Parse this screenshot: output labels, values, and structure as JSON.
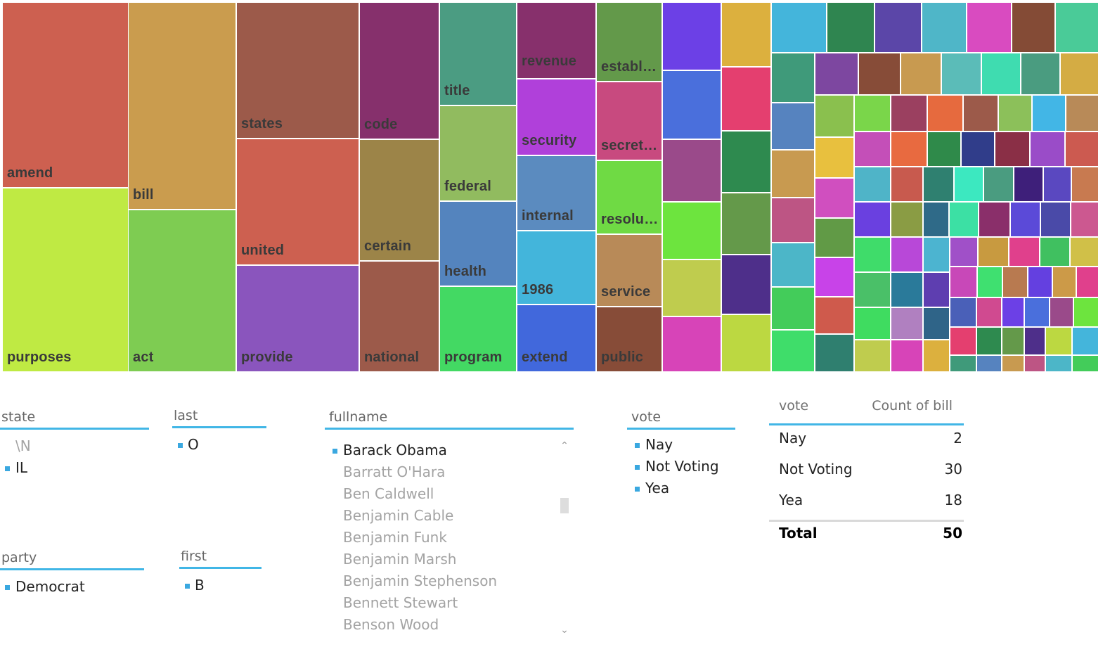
{
  "treemap": {
    "labeled_tiles": [
      {
        "label": "amend",
        "color": "#cd6050"
      },
      {
        "label": "purposes",
        "color": "#bfea43"
      },
      {
        "label": "bill",
        "color": "#ca9c4e"
      },
      {
        "label": "act",
        "color": "#7ecc52"
      },
      {
        "label": "states",
        "color": "#9c5a4a"
      },
      {
        "label": "united",
        "color": "#cd6050"
      },
      {
        "label": "provide",
        "color": "#8a55bd"
      },
      {
        "label": "code",
        "color": "#86306c"
      },
      {
        "label": "certain",
        "color": "#9c8448"
      },
      {
        "label": "national",
        "color": "#9c5a4a"
      },
      {
        "label": "title",
        "color": "#4b9c82"
      },
      {
        "label": "federal",
        "color": "#91bb5f"
      },
      {
        "label": "health",
        "color": "#5484be"
      },
      {
        "label": "program",
        "color": "#43d963"
      },
      {
        "label": "revenue",
        "color": "#87306c"
      },
      {
        "label": "security",
        "color": "#b040da"
      },
      {
        "label": "internal",
        "color": "#5b8bbf"
      },
      {
        "label": "1986",
        "color": "#43b5db"
      },
      {
        "label": "extend",
        "color": "#4168dc"
      },
      {
        "label": "establ…",
        "color": "#63994a"
      },
      {
        "label": "secret…",
        "color": "#c84a7f"
      },
      {
        "label": "resolu…",
        "color": "#6fda44"
      },
      {
        "label": "service",
        "color": "#b88a58"
      },
      {
        "label": "public",
        "color": "#874c38"
      }
    ]
  },
  "slicers": {
    "state": {
      "header": "state",
      "items": [
        {
          "label": "\\N",
          "selected": false
        },
        {
          "label": "IL",
          "selected": true
        }
      ]
    },
    "last": {
      "header": "last",
      "items": [
        {
          "label": "O",
          "selected": true
        }
      ]
    },
    "party": {
      "header": "party",
      "items": [
        {
          "label": "Democrat",
          "selected": true
        }
      ]
    },
    "first": {
      "header": "first",
      "items": [
        {
          "label": "B",
          "selected": true
        }
      ]
    },
    "fullname": {
      "header": "fullname",
      "items": [
        {
          "label": "Barack Obama",
          "selected": true
        },
        {
          "label": "Barratt O'Hara",
          "selected": false
        },
        {
          "label": "Ben Caldwell",
          "selected": false
        },
        {
          "label": "Benjamin Cable",
          "selected": false
        },
        {
          "label": "Benjamin Funk",
          "selected": false
        },
        {
          "label": "Benjamin Marsh",
          "selected": false
        },
        {
          "label": "Benjamin Stephenson",
          "selected": false
        },
        {
          "label": "Bennett Stewart",
          "selected": false
        },
        {
          "label": "Benson Wood",
          "selected": false
        }
      ]
    },
    "vote": {
      "header": "vote",
      "items": [
        {
          "label": "Nay",
          "selected": true
        },
        {
          "label": "Not Voting",
          "selected": true
        },
        {
          "label": "Yea",
          "selected": true
        }
      ]
    }
  },
  "vote_table": {
    "col_vote": "vote",
    "col_count": "Count of bill",
    "rows": [
      {
        "vote": "Nay",
        "count": "2"
      },
      {
        "vote": "Not Voting",
        "count": "30"
      },
      {
        "vote": "Yea",
        "count": "18"
      }
    ],
    "total_label": "Total",
    "total_value": "50"
  },
  "icons": {
    "scroll_up": "chevron-up-icon",
    "scroll_down": "chevron-down-icon"
  }
}
